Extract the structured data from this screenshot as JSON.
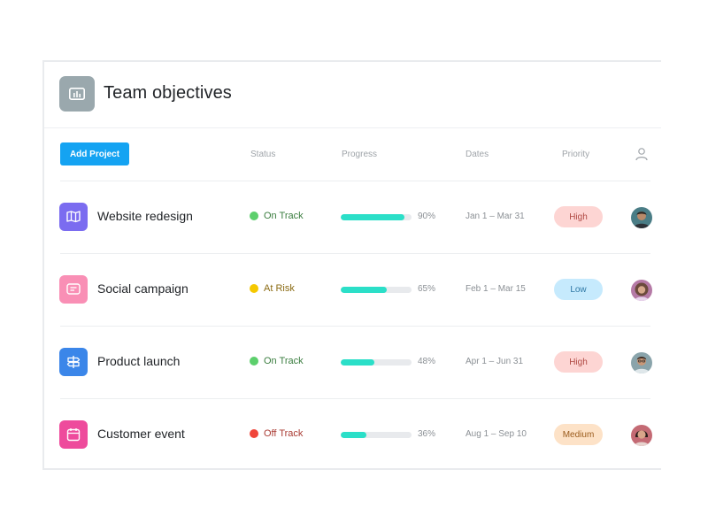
{
  "header": {
    "title": "Team objectives",
    "icon": "bar-chart-icon",
    "icon_bg": "#9aa8ad"
  },
  "toolbar": {
    "add_label": "Add Project",
    "add_color": "#14a3f2"
  },
  "columns": {
    "status": "Status",
    "progress": "Progress",
    "dates": "Dates",
    "priority": "Priority",
    "assignee_icon": "person-icon"
  },
  "projects": [
    {
      "name": "Website redesign",
      "icon": "map-icon",
      "icon_bg": "#7b6cf0",
      "status": "On Track",
      "status_color": "#5ccf6c",
      "status_text_color": "#3a7d3f",
      "progress": 90,
      "progress_label": "90%",
      "dates": "Jan 1 – Mar 31",
      "priority": "High",
      "priority_bg": "#fdd5d3",
      "priority_text": "#b04a44",
      "avatar": "avatar-man-dark-hair",
      "avatar_color": "#4a7d86"
    },
    {
      "name": "Social campaign",
      "icon": "chat-icon",
      "icon_bg": "#f98fb5",
      "status": "At Risk",
      "status_color": "#f5c800",
      "status_text_color": "#8a6a12",
      "progress": 65,
      "progress_label": "65%",
      "dates": "Feb 1 – Mar 15",
      "priority": "Low",
      "priority_bg": "#c6eafd",
      "priority_text": "#2e78a5",
      "avatar": "avatar-woman-curly-hair",
      "avatar_color": "#b57aa6"
    },
    {
      "name": "Product launch",
      "icon": "signpost-icon",
      "icon_bg": "#3b86e9",
      "status": "On Track",
      "status_color": "#5ccf6c",
      "status_text_color": "#3a7d3f",
      "progress": 48,
      "progress_label": "48%",
      "dates": "Apr 1 – Jun 31",
      "priority": "High",
      "priority_bg": "#fdd5d3",
      "priority_text": "#b04a44",
      "avatar": "avatar-man-glasses",
      "avatar_color": "#8aa4ab"
    },
    {
      "name": "Customer event",
      "icon": "calendar-icon",
      "icon_bg": "#ee4b9c",
      "status": "Off Track",
      "status_color": "#f0453a",
      "status_text_color": "#a93a32",
      "progress": 36,
      "progress_label": "36%",
      "dates": "Aug 1 – Sep 10",
      "priority": "Medium",
      "priority_bg": "#fde2c7",
      "priority_text": "#9a5b1c",
      "avatar": "avatar-woman-dark-hair",
      "avatar_color": "#c46a74"
    }
  ]
}
